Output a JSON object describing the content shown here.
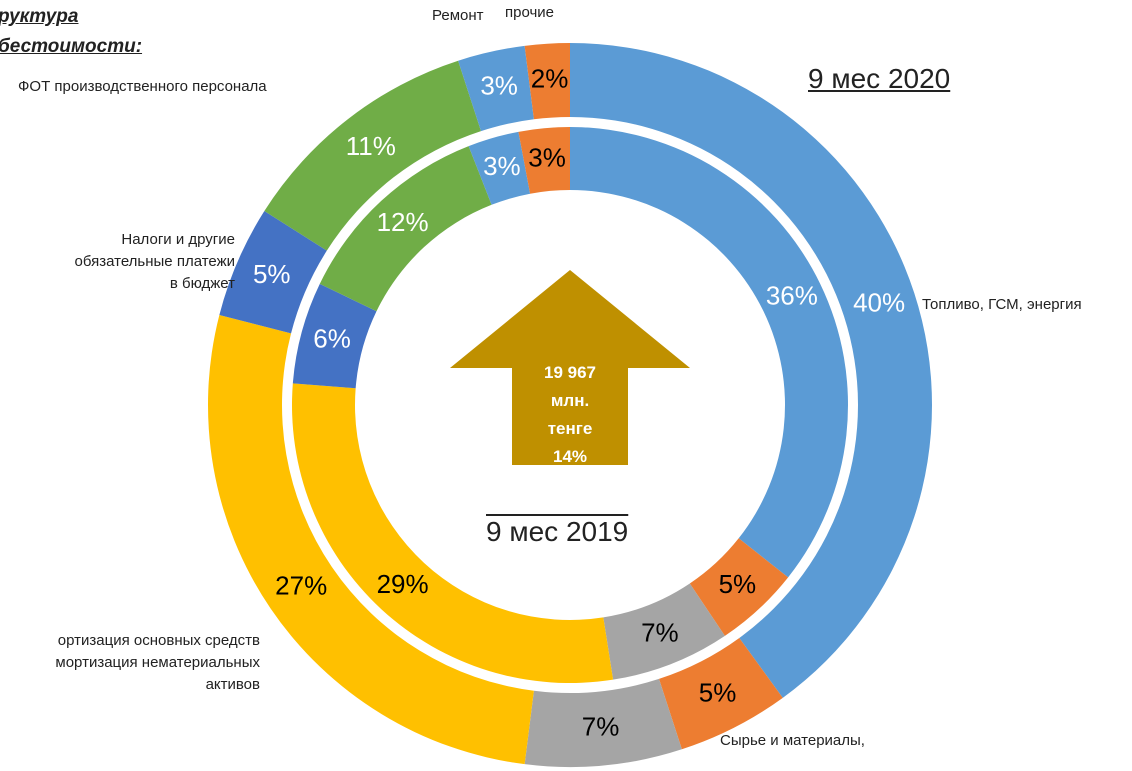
{
  "chart_data": {
    "type": "doughnut",
    "title": "руктура\nбестоимости:",
    "categories": [
      "Топливо, ГСМ, энергия",
      "Сырье и материалы,",
      null,
      "ортизация основных средств\nмортизация нематериальных\nактивов",
      "Налоги и другие\nобязательные платежи\nв бюджет",
      "ФОТ производственного персонала",
      "Ремонт",
      "прочие"
    ],
    "colors": [
      "#5b9bd5",
      "#ed7d31",
      "#a5a5a5",
      "#ffc000",
      "#4472c4",
      "#70ad47",
      "#5b9bd5",
      "#ed7d31"
    ],
    "series": [
      {
        "name": "9 мес 2020",
        "values": [
          40,
          5,
          7,
          27,
          5,
          11,
          3,
          2
        ],
        "value_labels": [
          "40%",
          "5%",
          "7%",
          "27%",
          "5%",
          "11%",
          "3%",
          "2%"
        ]
      },
      {
        "name": "9 мес 2019",
        "values": [
          36,
          5,
          7,
          29,
          6,
          12,
          3,
          3
        ],
        "value_labels": [
          "36%",
          "5%",
          "7%",
          "29%",
          "6%",
          "12%",
          "3%",
          "3%"
        ]
      }
    ],
    "center_label": "19 967\nмлн.\nтенге\n14%"
  }
}
